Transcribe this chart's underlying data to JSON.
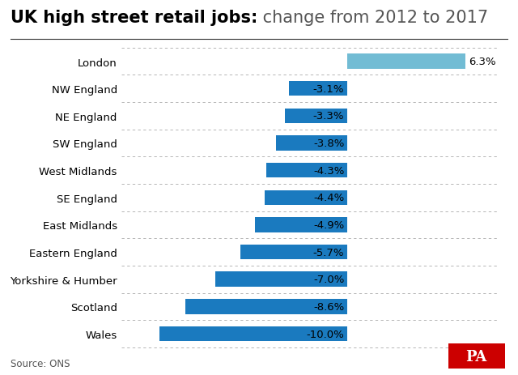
{
  "title_bold": "UK high street retail jobs:",
  "title_regular": " change from 2012 to 2017",
  "categories": [
    "London",
    "NW England",
    "NE England",
    "SW England",
    "West Midlands",
    "SE England",
    "East Midlands",
    "Eastern England",
    "Yorkshire & Humber",
    "Scotland",
    "Wales"
  ],
  "values": [
    6.3,
    -3.1,
    -3.3,
    -3.8,
    -4.3,
    -4.4,
    -4.9,
    -5.7,
    -7.0,
    -8.6,
    -10.0
  ],
  "labels": [
    "6.3%",
    "-3.1%",
    "-3.3%",
    "-3.8%",
    "-4.3%",
    "-4.4%",
    "-4.9%",
    "-5.7%",
    "-7.0%",
    "-8.6%",
    "-10.0%"
  ],
  "bar_color_positive": "#72bcd4",
  "bar_color_negative": "#1a7abf",
  "background_color": "#ffffff",
  "source_text": "Source: ONS",
  "pa_box_color": "#cc0000",
  "pa_text_color": "#ffffff",
  "xlim": [
    -12,
    8
  ],
  "title_fontsize": 15,
  "label_fontsize": 9.5,
  "category_fontsize": 9.5,
  "source_fontsize": 8.5,
  "grid_color": "#aaaaaa",
  "title_color_regular": "#555555"
}
